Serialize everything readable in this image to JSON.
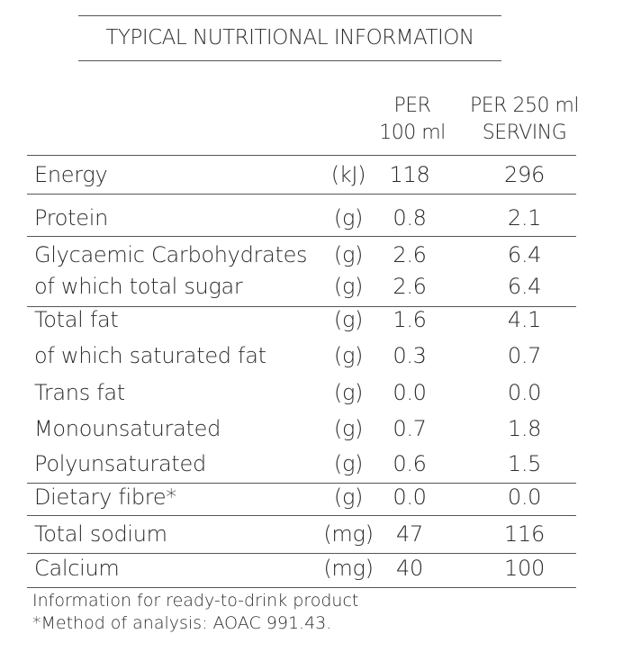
{
  "header": {
    "title": "TYPICAL NUTRITIONAL INFORMATION"
  },
  "table": {
    "columns": [
      [
        "PER",
        "100 ml"
      ],
      [
        "PER 250 ml",
        "SERVING"
      ]
    ],
    "rows": [
      [
        "Energy",
        "(kJ)",
        "118",
        "296"
      ],
      [
        "Protein",
        "(g)",
        "0.8",
        "2.1"
      ],
      [
        "Glycaemic Carbohydrates",
        "(g)",
        "2.6",
        "6.4"
      ],
      [
        "of which total sugar",
        "(g)",
        "2.6",
        "6.4"
      ],
      [
        "Total fat",
        "(g)",
        "1.6",
        "4.1"
      ],
      [
        "of which saturated fat",
        "(g)",
        "0.3",
        "0.7"
      ],
      [
        "Trans fat",
        "(g)",
        "0.0",
        "0.0"
      ],
      [
        "Monounsaturated",
        "(g)",
        "0.7",
        "1.8"
      ],
      [
        "Polyunsaturated",
        "(g)",
        "0.6",
        "1.5"
      ],
      [
        "Dietary fibre*",
        "(g)",
        "0.0",
        "0.0"
      ],
      [
        "Total sodium",
        "(mg)",
        "47",
        "116"
      ],
      [
        "Calcium",
        "(mg)",
        "40",
        "100"
      ]
    ]
  },
  "footnotes": [
    "Information for ready-to-drink product",
    "*Method of analysis: AOAC 991.43."
  ]
}
